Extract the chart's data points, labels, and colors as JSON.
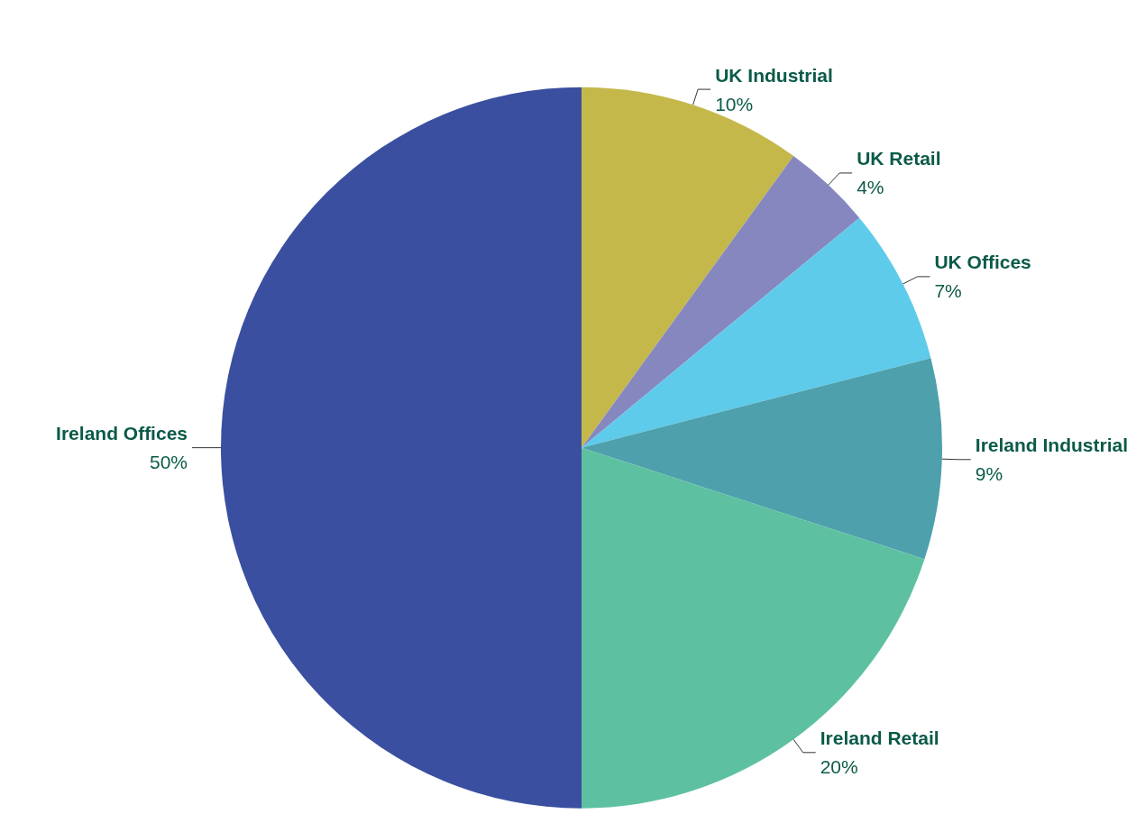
{
  "chart_data": {
    "type": "pie",
    "categories": [
      "UK Industrial",
      "UK Retail",
      "UK Offices",
      "Ireland Industrial",
      "Ireland Retail",
      "Ireland Offices"
    ],
    "values": [
      10,
      4,
      7,
      9,
      20,
      50
    ],
    "value_labels": [
      "10%",
      "4%",
      "7%",
      "9%",
      "20%",
      "50%"
    ],
    "colors": [
      "#c4b84b",
      "#8787c0",
      "#5ecbea",
      "#4ea0ac",
      "#5dc1a1",
      "#3a4f9f"
    ],
    "legend": false
  }
}
